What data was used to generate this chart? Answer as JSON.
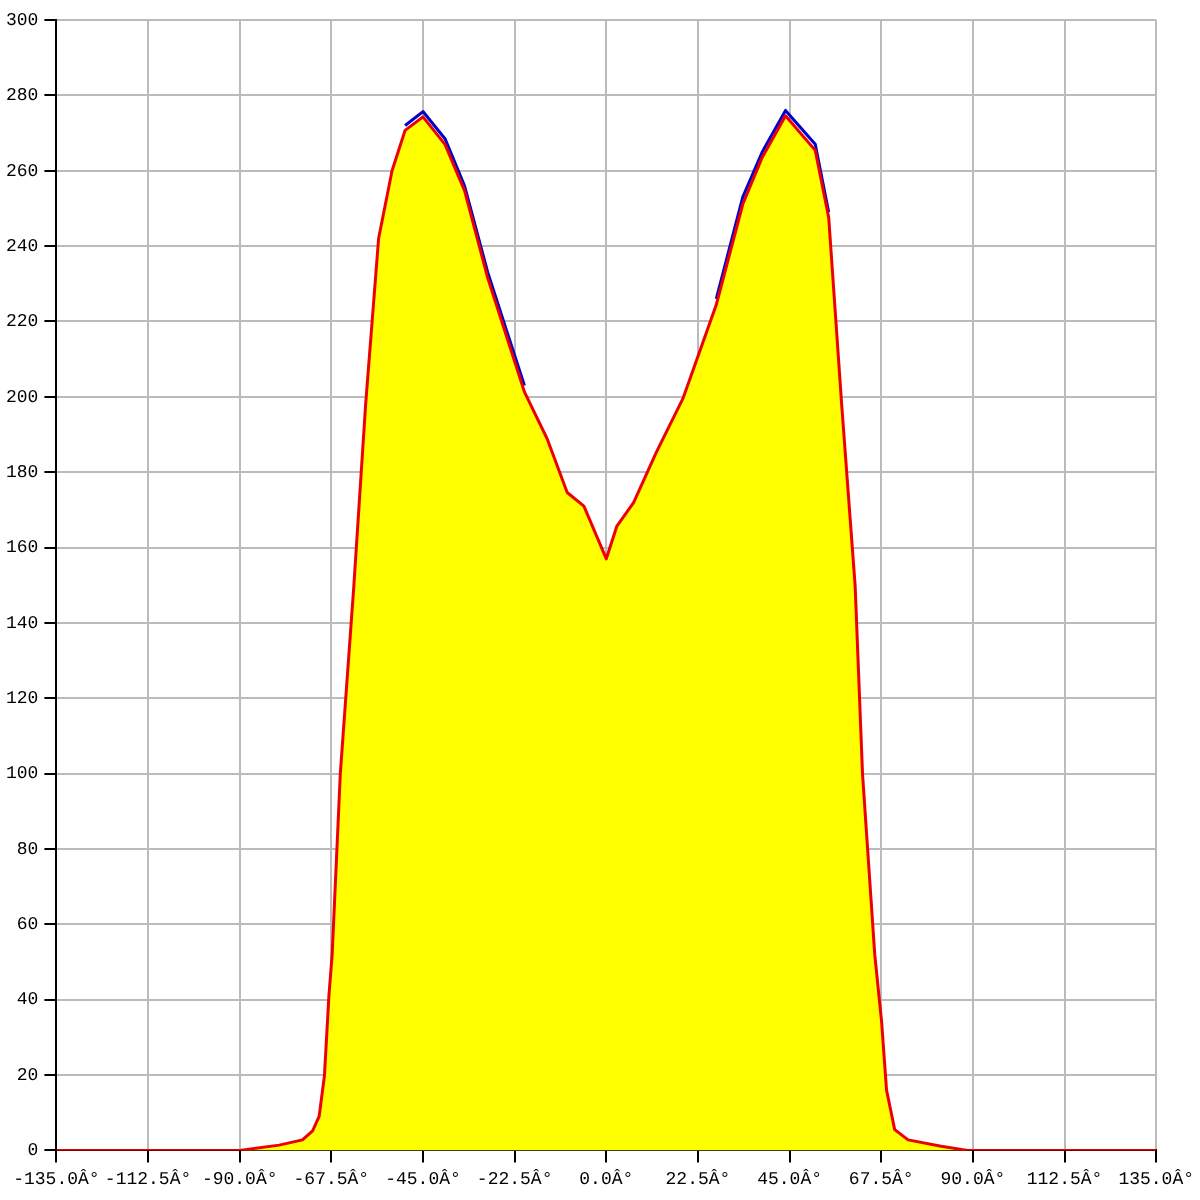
{
  "chart_data": {
    "type": "area",
    "x": [
      -135,
      -112.5,
      -90,
      -80.3,
      -74.6,
      -72.1,
      -70.5,
      -69.2,
      -68.1,
      -67.3,
      -65.3,
      -62,
      -59.1,
      -55.9,
      -52.6,
      -49.4,
      -45,
      -39.6,
      -34.8,
      -29.1,
      -20.1,
      -14.5,
      -9.6,
      -5.5,
      0,
      2.6,
      6.7,
      12.3,
      18.8,
      27,
      33.5,
      38.3,
      44,
      51.3,
      54.6,
      57.8,
      61.1,
      62.9,
      65.9,
      67.6,
      68.8,
      70.8,
      74.1,
      82.2,
      88.7,
      112.5,
      135
    ],
    "series": [
      {
        "type": "line",
        "color": "#0000cc",
        "values": [
          null,
          null,
          null,
          null,
          null,
          null,
          null,
          null,
          null,
          null,
          null,
          null,
          null,
          null,
          null,
          272,
          275.7,
          268.5,
          256,
          233,
          203,
          null,
          null,
          null,
          null,
          null,
          null,
          null,
          null,
          226,
          253,
          265,
          276,
          267,
          249,
          null,
          null,
          null,
          null,
          null,
          null,
          null,
          null,
          null,
          null,
          null,
          null
        ]
      },
      {
        "color": "#ffff00",
        "values": [
          0,
          0,
          0,
          1.4,
          2.8,
          5.2,
          9,
          19.8,
          41,
          52,
          100,
          149.5,
          197.7,
          242,
          260,
          270.7,
          274.3,
          267,
          254.7,
          231.5,
          201.3,
          188.8,
          174.6,
          171,
          157,
          165.7,
          171.9,
          185.3,
          199.5,
          224.4,
          251.1,
          263.6,
          274.6,
          265.4,
          247.6,
          197.7,
          149.7,
          100,
          52,
          34,
          16,
          5.5,
          2.8,
          1.1,
          0,
          0,
          0
        ]
      }
    ],
    "xlim": [
      -135,
      135
    ],
    "xticks": [
      {
        "value": -135,
        "label": "-135.0Â°"
      },
      {
        "value": -112.5,
        "label": "-112.5Â°"
      },
      {
        "value": -90,
        "label": "-90.0Â°"
      },
      {
        "value": -67.5,
        "label": "-67.5Â°"
      },
      {
        "value": -45,
        "label": "-45.0Â°"
      },
      {
        "value": -22.5,
        "label": "-22.5Â°"
      },
      {
        "value": 0,
        "label": "0.0Â°"
      },
      {
        "value": 22.5,
        "label": "22.5Â°"
      },
      {
        "value": 45,
        "label": "45.0Â°"
      },
      {
        "value": 67.5,
        "label": "67.5Â°"
      },
      {
        "value": 90,
        "label": "90.0Â°"
      },
      {
        "value": 112.5,
        "label": "112.5Â°"
      },
      {
        "value": 135,
        "label": "135.0Â°"
      }
    ],
    "ylim": [
      0,
      300
    ],
    "yticks": [
      0,
      20,
      40,
      60,
      80,
      100,
      120,
      140,
      160,
      180,
      200,
      220,
      240,
      260,
      280,
      300
    ],
    "grid": true,
    "legend": false,
    "marker": "none",
    "line_style": "solid"
  }
}
